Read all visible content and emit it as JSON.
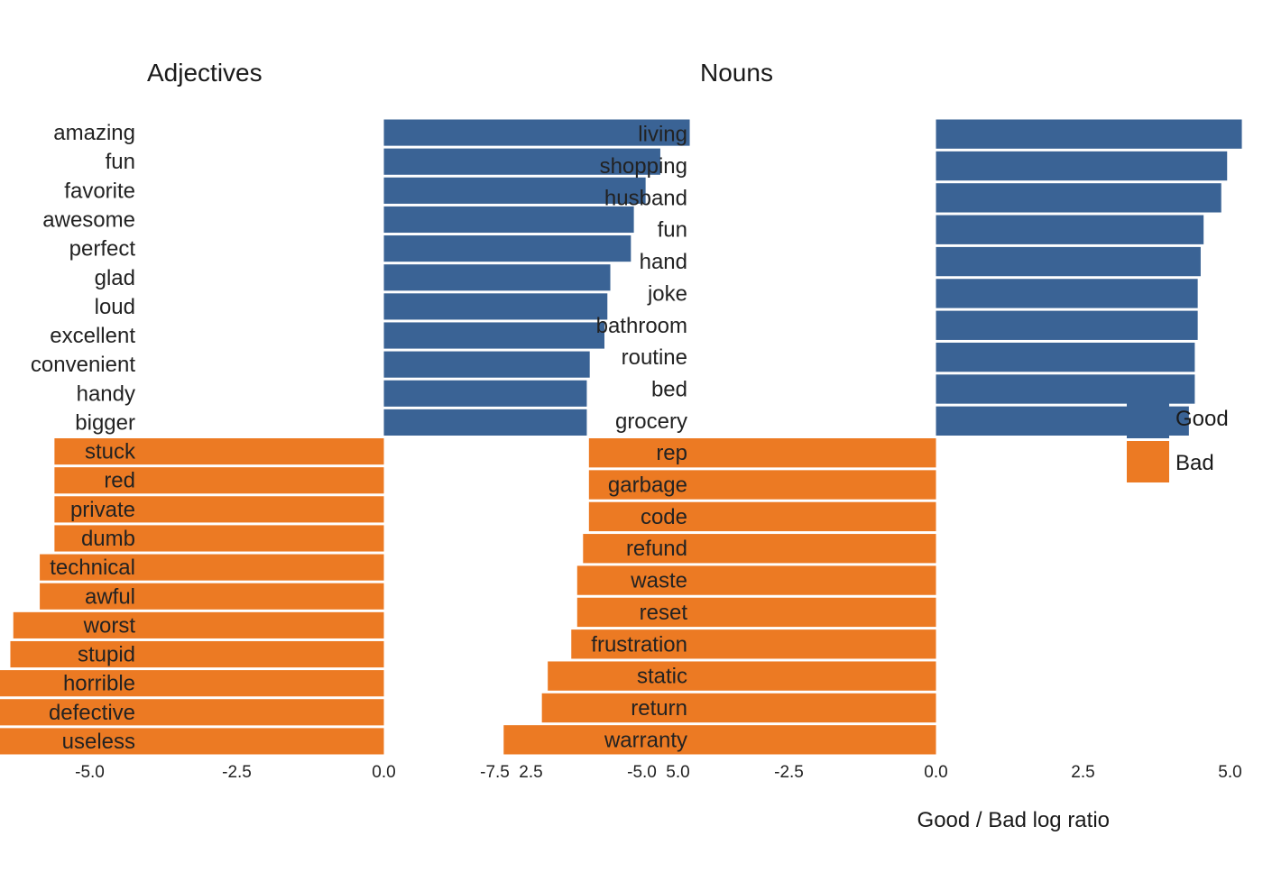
{
  "chart_data": [
    {
      "type": "bar",
      "orientation": "horizontal",
      "title": "Adjectives",
      "categories": [
        "amazing",
        "fun",
        "favorite",
        "awesome",
        "perfect",
        "glad",
        "loud",
        "excellent",
        "convenient",
        "handy",
        "bigger",
        "stuck",
        "red",
        "private",
        "dumb",
        "technical",
        "awful",
        "worst",
        "stupid",
        "horrible",
        "defective",
        "useless"
      ],
      "values": [
        5.2,
        4.7,
        4.45,
        4.25,
        4.2,
        3.85,
        3.8,
        3.75,
        3.5,
        3.45,
        3.45,
        -5.6,
        -5.6,
        -5.6,
        -5.6,
        -5.85,
        -5.85,
        -6.3,
        -6.35,
        -6.7,
        -7.05,
        -7.5
      ],
      "groups": [
        "Good",
        "Good",
        "Good",
        "Good",
        "Good",
        "Good",
        "Good",
        "Good",
        "Good",
        "Good",
        "Good",
        "Bad",
        "Bad",
        "Bad",
        "Bad",
        "Bad",
        "Bad",
        "Bad",
        "Bad",
        "Bad",
        "Bad",
        "Bad"
      ],
      "xlim": [
        -7.5,
        5.0
      ],
      "xticks": [
        "-7.5",
        "-5.0",
        "-2.5",
        "0.0",
        "2.5",
        "5.0"
      ],
      "xlabel": "",
      "ylabel": ""
    },
    {
      "type": "bar",
      "orientation": "horizontal",
      "title": "Nouns",
      "categories": [
        "living",
        "shopping",
        "husband",
        "fun",
        "hand",
        "joke",
        "bathroom",
        "routine",
        "bed",
        "grocery",
        "rep",
        "garbage",
        "code",
        "refund",
        "waste",
        "reset",
        "frustration",
        "static",
        "return",
        "warranty"
      ],
      "values": [
        5.2,
        4.95,
        4.85,
        4.55,
        4.5,
        4.45,
        4.45,
        4.4,
        4.4,
        4.3,
        -5.9,
        -5.9,
        -5.9,
        -6.0,
        -6.1,
        -6.1,
        -6.2,
        -6.6,
        -6.7,
        -7.35
      ],
      "groups": [
        "Good",
        "Good",
        "Good",
        "Good",
        "Good",
        "Good",
        "Good",
        "Good",
        "Good",
        "Good",
        "Bad",
        "Bad",
        "Bad",
        "Bad",
        "Bad",
        "Bad",
        "Bad",
        "Bad",
        "Bad",
        "Bad"
      ],
      "xlim": [
        -7.5,
        5.0
      ],
      "xticks": [
        "-7.5",
        "-5.0",
        "-2.5",
        "0.0",
        "2.5",
        "5.0"
      ],
      "xlabel": "Good / Bad log ratio",
      "ylabel": ""
    }
  ],
  "legend": {
    "items": [
      {
        "label": "Good",
        "color": "#3a6395"
      },
      {
        "label": "Bad",
        "color": "#ec7a23"
      }
    ]
  },
  "colors": {
    "Good": "#3a6395",
    "Bad": "#ec7a23"
  }
}
